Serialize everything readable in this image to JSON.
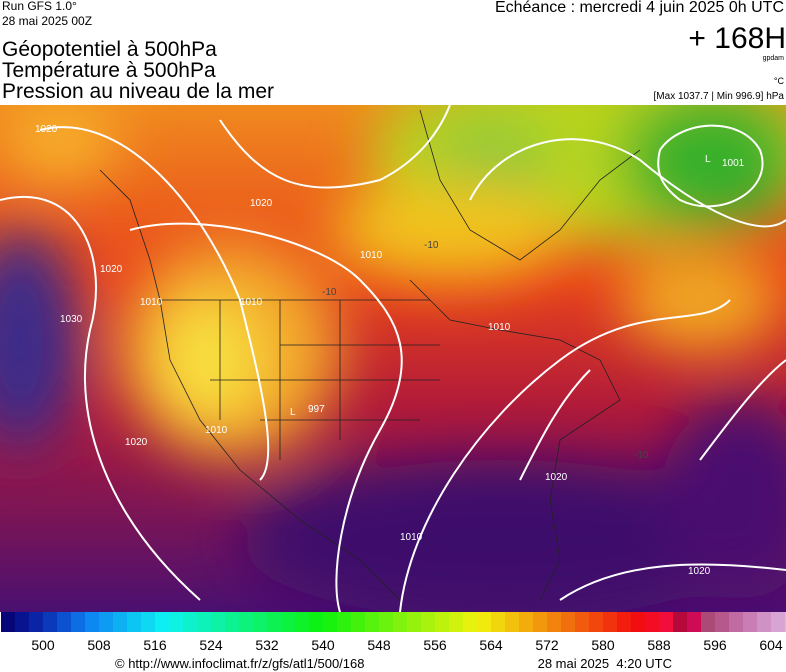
{
  "header": {
    "run": "Run GFS 1.0°",
    "run_date": "28 mai 2025 00Z",
    "titles": [
      "Géopotentiel à 500hPa",
      "Température à 500hPa",
      "Pression au niveau de la mer"
    ],
    "echeance": "Echéance : mercredi 4 juin 2025 0h UTC",
    "forecast": "+ 168H",
    "unit_geo": "gpdam",
    "unit_temp": "°C",
    "pressure_range": "[Max 1037.7 | Min 996.9] hPa"
  },
  "map": {
    "labels": [
      "1020",
      "1020",
      "1020",
      "1030",
      "1010",
      "1010",
      "1010",
      "1010",
      "1010",
      "L",
      "1001",
      "L",
      "997",
      "1020",
      "1020",
      "1010",
      "1020",
      "-10",
      "-10",
      "-10"
    ]
  },
  "colorbar": {
    "ticks": [
      500,
      508,
      516,
      524,
      532,
      540,
      548,
      556,
      564,
      572,
      580,
      588,
      596,
      604
    ]
  },
  "footer": {
    "source": "© http://www.infoclimat.fr/z/gfs/atl1/500/168",
    "generated": "28 mai 2025  4:20 UTC"
  }
}
